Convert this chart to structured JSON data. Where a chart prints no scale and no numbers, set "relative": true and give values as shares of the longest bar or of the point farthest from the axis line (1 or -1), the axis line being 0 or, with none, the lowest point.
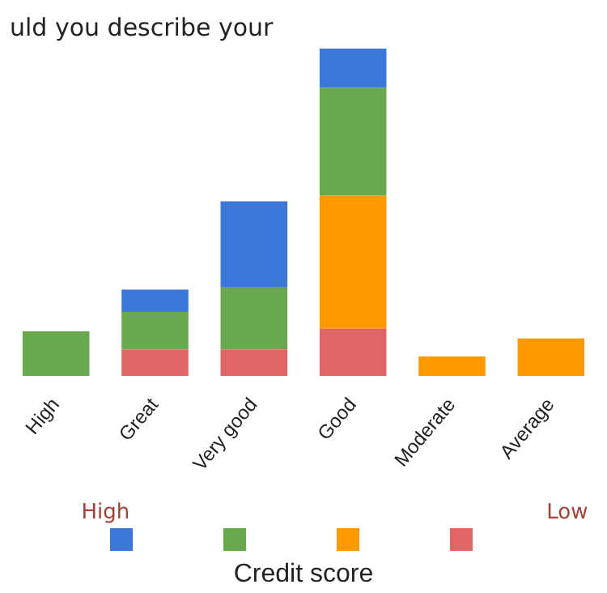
{
  "chart_data": {
    "type": "bar",
    "title": "uld you describe your",
    "xlabel": "Credit score",
    "annotations": [
      "High",
      "Low"
    ],
    "categories": [
      "High",
      "Great",
      "Very good",
      "Good",
      "Moderate",
      "Average"
    ],
    "stacked": true,
    "relative": true,
    "grid": false,
    "series": [
      {
        "color": "#e06666",
        "values": [
          null,
          0.081,
          0.081,
          0.145,
          null,
          null
        ]
      },
      {
        "color": "#ff9900",
        "values": [
          null,
          null,
          null,
          0.406,
          0.06,
          0.115
        ]
      },
      {
        "color": "#6aa84f",
        "values": [
          0.137,
          0.115,
          0.192,
          0.329,
          null,
          null
        ]
      },
      {
        "color": "#3c78d8",
        "values": [
          null,
          0.068,
          0.261,
          0.12,
          null,
          null
        ]
      }
    ]
  }
}
